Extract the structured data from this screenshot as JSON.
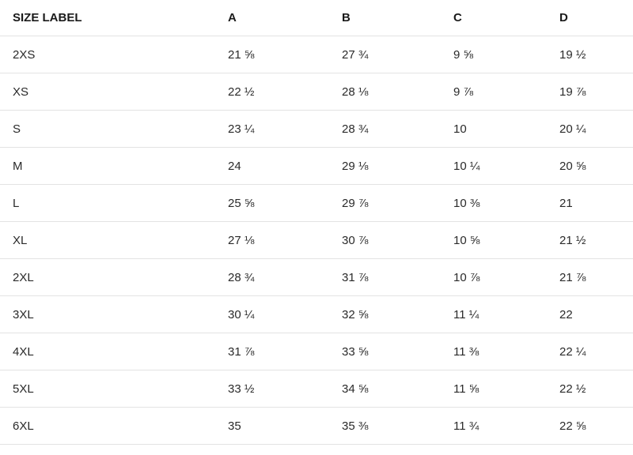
{
  "table": {
    "headers": [
      "SIZE LABEL",
      "A",
      "B",
      "C",
      "D"
    ],
    "rows": [
      [
        "2XS",
        "21 ⅝",
        "27 ¾",
        "9 ⅝",
        "19 ½"
      ],
      [
        "XS",
        "22 ½",
        "28 ⅛",
        "9 ⅞",
        "19 ⅞"
      ],
      [
        "S",
        "23 ¼",
        "28 ¾",
        "10",
        "20 ¼"
      ],
      [
        "M",
        "24",
        "29 ⅛",
        "10 ¼",
        "20 ⅝"
      ],
      [
        "L",
        "25 ⅝",
        "29 ⅞",
        "10 ⅜",
        "21"
      ],
      [
        "XL",
        "27 ⅛",
        "30 ⅞",
        "10 ⅝",
        "21 ½"
      ],
      [
        "2XL",
        "28 ¾",
        "31 ⅞",
        "10 ⅞",
        "21 ⅞"
      ],
      [
        "3XL",
        "30 ¼",
        "32 ⅝",
        "11 ¼",
        "22"
      ],
      [
        "4XL",
        "31 ⅞",
        "33 ⅝",
        "11 ⅜",
        "22 ¼"
      ],
      [
        "5XL",
        "33 ½",
        "34 ⅝",
        "11 ⅝",
        "22 ½"
      ],
      [
        "6XL",
        "35",
        "35 ⅜",
        "11 ¾",
        "22 ⅝"
      ]
    ]
  }
}
